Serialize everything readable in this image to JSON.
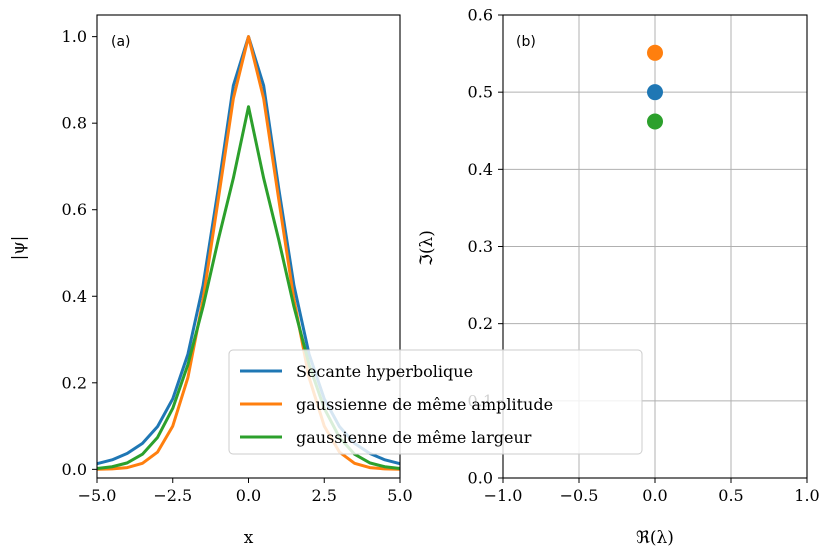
{
  "chart_data": [
    {
      "type": "line",
      "panel_tag": "(a)",
      "xlabel": "x",
      "ylabel": "|ψ|",
      "xlim": [
        -5.0,
        5.0
      ],
      "ylim": [
        -0.02,
        1.05
      ],
      "xticks": [
        -5.0,
        -2.5,
        0.0,
        2.5,
        5.0
      ],
      "xtick_labels": [
        "−5.0",
        "−2.5",
        "0.0",
        "2.5",
        "5.0"
      ],
      "yticks": [
        0.0,
        0.2,
        0.4,
        0.6,
        0.8,
        1.0
      ],
      "ytick_labels": [
        "0.0",
        "0.2",
        "0.4",
        "0.6",
        "0.8",
        "1.0"
      ],
      "grid": false,
      "legend_position": "lower-right",
      "x": [
        -5.0,
        -4.5,
        -4.0,
        -3.5,
        -3.0,
        -2.5,
        -2.0,
        -1.5,
        -1.0,
        -0.5,
        0.0,
        0.5,
        1.0,
        1.5,
        2.0,
        2.5,
        3.0,
        3.5,
        4.0,
        4.5,
        5.0
      ],
      "series": [
        {
          "name": "Secante hyperbolique",
          "color": "#1f77b4",
          "values": [
            0.013,
            0.022,
            0.037,
            0.06,
            0.099,
            0.163,
            0.266,
            0.425,
            0.648,
            0.887,
            1.0,
            0.887,
            0.648,
            0.425,
            0.266,
            0.163,
            0.099,
            0.06,
            0.037,
            0.022,
            0.013
          ]
        },
        {
          "name": "gaussienne de même amplitude",
          "color": "#ff7f0e",
          "values": [
            0.0003,
            0.001,
            0.004,
            0.014,
            0.04,
            0.1,
            0.212,
            0.392,
            0.623,
            0.857,
            1.0,
            0.857,
            0.623,
            0.392,
            0.212,
            0.1,
            0.04,
            0.014,
            0.004,
            0.001,
            0.0003
          ]
        },
        {
          "name": "gaussienne de même largeur",
          "color": "#2ca02c",
          "values": [
            0.002,
            0.006,
            0.015,
            0.035,
            0.074,
            0.141,
            0.242,
            0.376,
            0.53,
            0.673,
            0.838,
            0.673,
            0.53,
            0.376,
            0.242,
            0.141,
            0.074,
            0.035,
            0.015,
            0.006,
            0.002
          ]
        }
      ]
    },
    {
      "type": "scatter",
      "panel_tag": "(b)",
      "xlabel": "ℜ(λ)",
      "ylabel": "ℑ(λ)",
      "xlim": [
        -1.0,
        1.0
      ],
      "ylim": [
        0.0,
        0.6
      ],
      "xticks": [
        -1.0,
        -0.5,
        0.0,
        0.5,
        1.0
      ],
      "xtick_labels": [
        "−1.0",
        "−0.5",
        "0.0",
        "0.5",
        "1.0"
      ],
      "yticks": [
        0.0,
        0.1,
        0.2,
        0.3,
        0.4,
        0.5,
        0.6
      ],
      "ytick_labels": [
        "0.0",
        "0.1",
        "0.2",
        "0.3",
        "0.4",
        "0.5",
        "0.6"
      ],
      "grid": true,
      "points": [
        {
          "x": 0.0,
          "y": 0.551,
          "color": "#ff7f0e"
        },
        {
          "x": 0.0,
          "y": 0.5,
          "color": "#1f77b4"
        },
        {
          "x": 0.0,
          "y": 0.462,
          "color": "#2ca02c"
        }
      ]
    }
  ]
}
